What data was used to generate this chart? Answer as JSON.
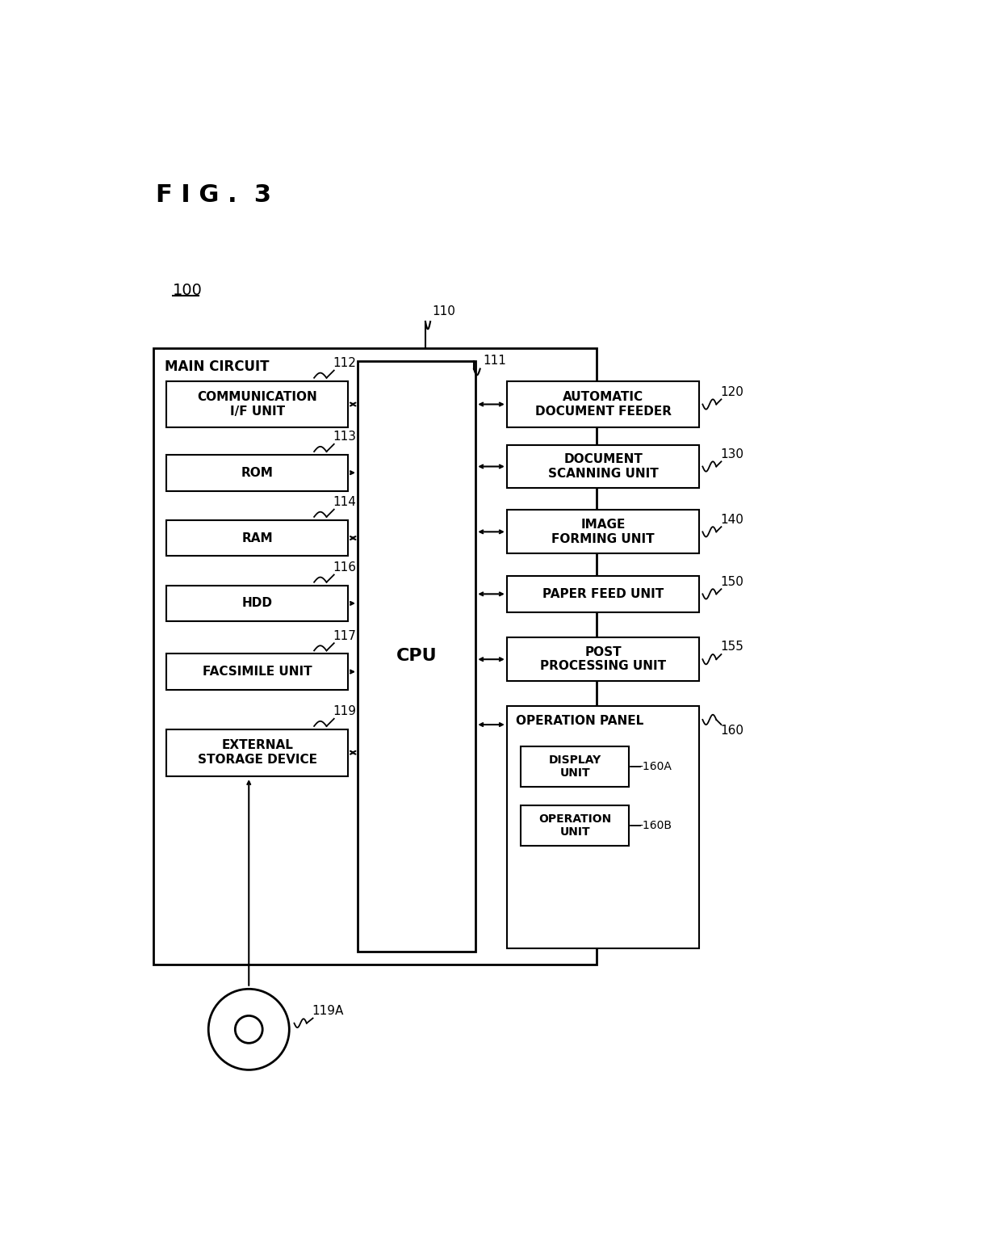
{
  "fig_label": "F I G .  3",
  "bg_color": "#ffffff",
  "line_color": "#000000",
  "main_ref": "100",
  "circuit_ref": "110",
  "cpu_ref": "111",
  "main_circuit_label": "MAIN CIRCUIT",
  "cpu_label": "CPU",
  "left_boxes": [
    {
      "label": "COMMUNICATION\nI/F UNIT",
      "ref": "112",
      "arrow": "bidir"
    },
    {
      "label": "ROM",
      "ref": "113",
      "arrow": "right"
    },
    {
      "label": "RAM",
      "ref": "114",
      "arrow": "bidir"
    },
    {
      "label": "HDD",
      "ref": "116",
      "arrow": "right"
    },
    {
      "label": "FACSIMILE UNIT",
      "ref": "117",
      "arrow": "right"
    },
    {
      "label": "EXTERNAL\nSTORAGE DEVICE",
      "ref": "119",
      "arrow": "bidir"
    }
  ],
  "right_boxes": [
    {
      "label": "AUTOMATIC\nDOCUMENT FEEDER",
      "ref": "120",
      "arrow": "bidir"
    },
    {
      "label": "DOCUMENT\nSCANNING UNIT",
      "ref": "130",
      "arrow": "bidir"
    },
    {
      "label": "IMAGE\nFORMING UNIT",
      "ref": "140",
      "arrow": "bidir"
    },
    {
      "label": "PAPER FEED UNIT",
      "ref": "150",
      "arrow": "bidir"
    },
    {
      "label": "POST\nPROCESSING UNIT",
      "ref": "155",
      "arrow": "bidir"
    }
  ],
  "op_panel_ref": "160",
  "op_panel_label": "OPERATION PANEL",
  "display_label": "DISPLAY\nUNIT",
  "display_ref": "160A",
  "operation_label": "OPERATION\nUNIT",
  "operation_ref": "160B",
  "disk_ref": "119A"
}
